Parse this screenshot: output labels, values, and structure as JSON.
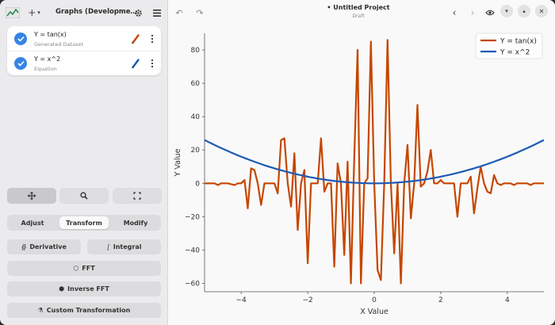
{
  "sidebar": {
    "add_icon": "plus-icon",
    "title": "Graphs (Developme…",
    "items": [
      {
        "title": "Y = tan(x)",
        "subtitle": "Generated Dataset",
        "color": "#c64600"
      },
      {
        "title": "Y = x^2",
        "subtitle": "Equation",
        "color": "#1c5bb5"
      }
    ],
    "tools": [
      "pan",
      "zoom",
      "select"
    ],
    "tabs": [
      "Adjust",
      "Transform",
      "Modify"
    ],
    "active_tab": "Transform",
    "buttons": {
      "derivative": "Derivative",
      "integral": "Integral",
      "fft": "FFT",
      "inverse_fft": "Inverse FFT",
      "custom": "Custom Transformation"
    }
  },
  "header": {
    "title": "• Untitled Project",
    "subtitle": "Draft"
  },
  "chart_data": {
    "type": "line",
    "xlabel": "X Value",
    "ylabel": "Y Value",
    "xlim": [
      -5.1,
      5.1
    ],
    "ylim": [
      -65,
      90
    ],
    "xticks": [
      -4,
      -2,
      0,
      2,
      4
    ],
    "yticks": [
      -60,
      -40,
      -20,
      0,
      20,
      40,
      60,
      80
    ],
    "grid": false,
    "legend_position": "top-right",
    "series": [
      {
        "name": "Y = tan(x)",
        "color": "#c64600",
        "x": [
          -5.1,
          -4.9,
          -4.8,
          -4.7,
          -4.6,
          -4.5,
          -4.4,
          -4.2,
          -4.1,
          -4.0,
          -3.9,
          -3.8,
          -3.7,
          -3.6,
          -3.5,
          -3.4,
          -3.3,
          -3.2,
          -3.1,
          -3.0,
          -2.9,
          -2.8,
          -2.7,
          -2.6,
          -2.5,
          -2.4,
          -2.3,
          -2.2,
          -2.1,
          -2.0,
          -1.9,
          -1.8,
          -1.7,
          -1.6,
          -1.5,
          -1.4,
          -1.3,
          -1.2,
          -1.1,
          -1.0,
          -0.9,
          -0.8,
          -0.7,
          -0.6,
          -0.5,
          -0.4,
          -0.3,
          -0.2,
          -0.1,
          0.0,
          0.1,
          0.2,
          0.3,
          0.4,
          0.5,
          0.6,
          0.7,
          0.8,
          0.9,
          1.0,
          1.1,
          1.2,
          1.3,
          1.4,
          1.5,
          1.6,
          1.7,
          1.8,
          1.9,
          2.0,
          2.1,
          2.2,
          2.3,
          2.4,
          2.5,
          2.6,
          2.7,
          2.8,
          2.9,
          3.0,
          3.1,
          3.2,
          3.3,
          3.4,
          3.5,
          3.6,
          3.7,
          3.8,
          3.9,
          4.0,
          4.1,
          4.2,
          4.3,
          4.4,
          4.5,
          4.6,
          4.7,
          4.8,
          4.9,
          5.1
        ],
        "y": [
          0,
          0,
          0,
          -1,
          0,
          0,
          0,
          -1,
          0,
          0,
          2,
          -15,
          9,
          8,
          0,
          -13,
          0,
          0,
          0,
          0,
          -6,
          26,
          27,
          0,
          -14,
          18,
          -28,
          0,
          8,
          -48,
          0,
          0,
          0,
          27,
          -5,
          0,
          0,
          -50,
          12,
          0,
          -43,
          13,
          -60,
          15,
          80,
          -60,
          0,
          3,
          85,
          0,
          -52,
          -58,
          0,
          86,
          0,
          -42,
          0,
          -60,
          0,
          23,
          -21,
          0,
          47,
          -2,
          0,
          7,
          20,
          0,
          0,
          2,
          0,
          0,
          0,
          0,
          -20,
          0,
          0,
          0,
          4,
          -18,
          -3,
          10,
          0,
          -5,
          -6,
          5,
          0,
          -1,
          0,
          0,
          0,
          -1,
          0,
          0,
          0,
          0,
          -1,
          0,
          0,
          0
        ]
      },
      {
        "name": "Y = x^2",
        "color": "#1c5bb5",
        "function": "x^2"
      }
    ]
  }
}
